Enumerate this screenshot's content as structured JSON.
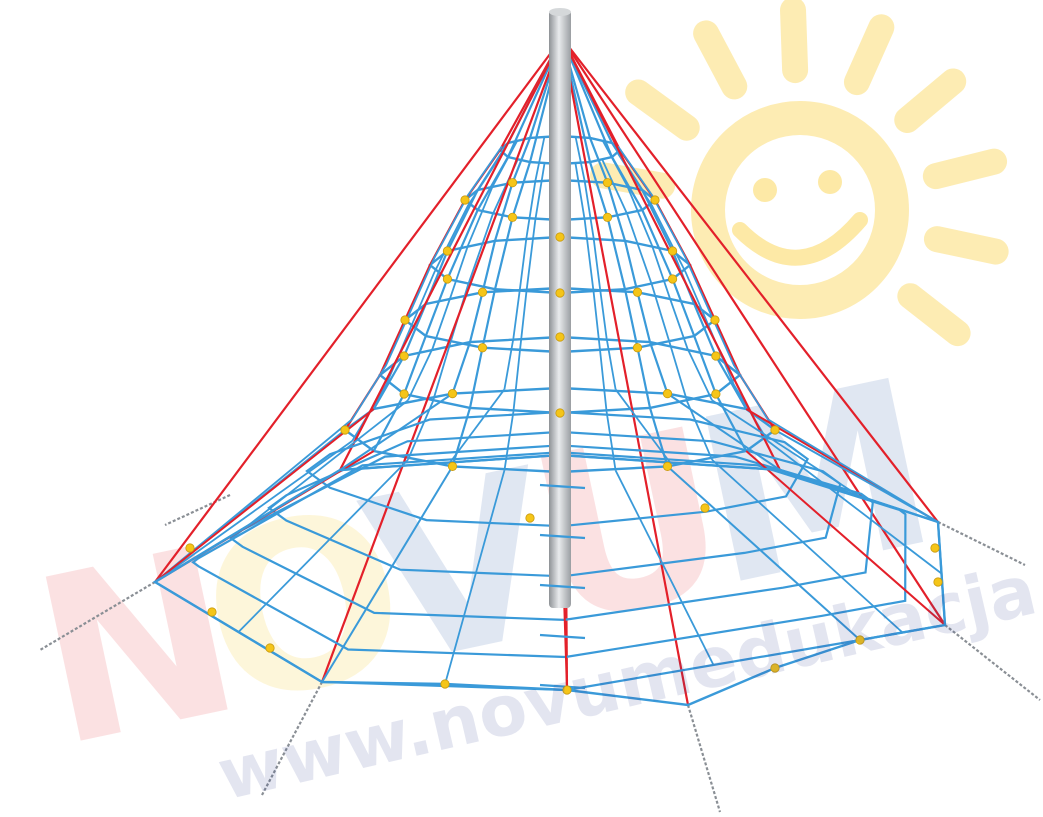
{
  "watermark": {
    "brand_letters": [
      "N",
      "O",
      "V",
      "U",
      "M"
    ],
    "url_text": "www.novumedukacja.pl",
    "letter_colors": [
      "#e8333c",
      "#f5c400",
      "#2e5aa8",
      "#e8333c",
      "#2e5aa8"
    ],
    "url_color": "#2f3f91"
  },
  "colors": {
    "background": "#ffffff",
    "net_rope": "#3a9ad9",
    "main_rope": "#e3202a",
    "connector": "#f5c518",
    "pole": "#b7babd",
    "chain": "#8a8f95",
    "sun": "#fde9a6"
  },
  "subject": {
    "description_icon": "rope-pyramid-climbing-net-icon"
  }
}
